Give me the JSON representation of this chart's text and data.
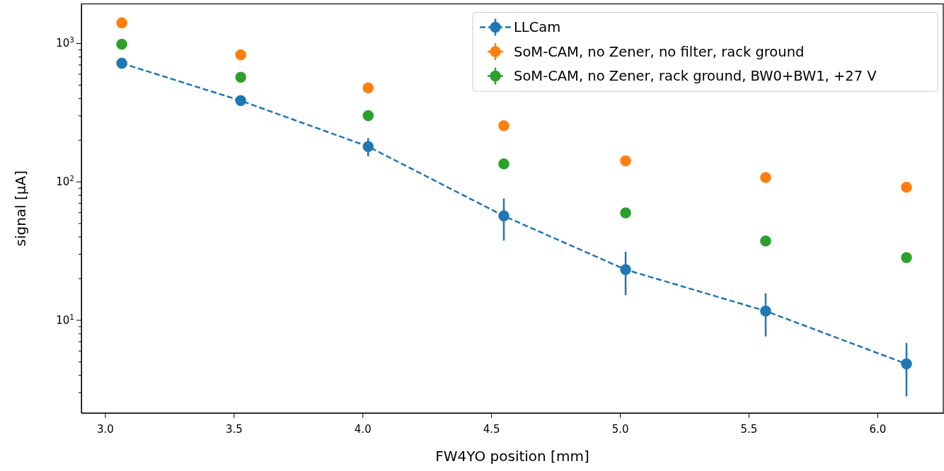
{
  "chart_data": {
    "type": "scatter",
    "xlabel": "FW4YO position [mm]",
    "ylabel": "signal [μA]",
    "log": "y",
    "xlim": [
      2.908,
      6.256
    ],
    "xticks": [
      {
        "value": 3,
        "label": "3.0"
      },
      {
        "value": 3.5,
        "label": "3.5"
      },
      {
        "value": 4,
        "label": "4.0"
      },
      {
        "value": 4.5,
        "label": "4.5"
      },
      {
        "value": 5,
        "label": "5.0"
      },
      {
        "value": 5.5,
        "label": "5.5"
      },
      {
        "value": 6,
        "label": "6.0"
      }
    ],
    "ylim": [
      2.126,
      1921
    ],
    "yticks": [
      {
        "value": 3,
        "label": null
      },
      {
        "value": 4,
        "label": null
      },
      {
        "value": 5,
        "label": null
      },
      {
        "value": 6,
        "label": null
      },
      {
        "value": 7,
        "label": null
      },
      {
        "value": 8,
        "label": null
      },
      {
        "value": 9,
        "label": null
      },
      {
        "value": 10,
        "label": "10$^{1}$"
      },
      {
        "value": 20,
        "label": null
      },
      {
        "value": 30,
        "label": null
      },
      {
        "value": 40,
        "label": null
      },
      {
        "value": 50,
        "label": null
      },
      {
        "value": 60,
        "label": null
      },
      {
        "value": 70,
        "label": null
      },
      {
        "value": 80,
        "label": null
      },
      {
        "value": 90,
        "label": null
      },
      {
        "value": 100,
        "label": "10$^{2}$"
      },
      {
        "value": 200,
        "label": null
      },
      {
        "value": 300,
        "label": null
      },
      {
        "value": 400,
        "label": null
      },
      {
        "value": 500,
        "label": null
      },
      {
        "value": 600,
        "label": null
      },
      {
        "value": 700,
        "label": null
      },
      {
        "value": 800,
        "label": null
      },
      {
        "value": 900,
        "label": null
      },
      {
        "value": 1000,
        "label": "10$^{3}$"
      }
    ],
    "x": [
      3.065,
      3.527,
      4.022,
      4.549,
      5.022,
      5.566,
      6.113
    ],
    "marker": "circle",
    "legend": "top right",
    "series": [
      {
        "name": "LLCam",
        "type": "line",
        "line_style": "dashed",
        "color": "#1f77b4",
        "values": [
          716,
          384,
          179,
          56.4,
          23.1,
          11.6,
          4.81
        ],
        "errors": [
          null,
          null,
          27,
          19,
          8,
          4,
          2
        ]
      },
      {
        "name": "SoM-CAM, no Zener, no filter, rack ground",
        "color": "#ff7f0e",
        "values": [
          1400,
          823,
          475,
          253,
          141,
          107,
          91
        ]
      },
      {
        "name": "SoM-CAM, no Zener, rack ground, BW0+BW1, +27 V",
        "color": "#2ca02c",
        "values": [
          982,
          567,
          299,
          134,
          59.4,
          37.2,
          28.2
        ]
      }
    ]
  }
}
